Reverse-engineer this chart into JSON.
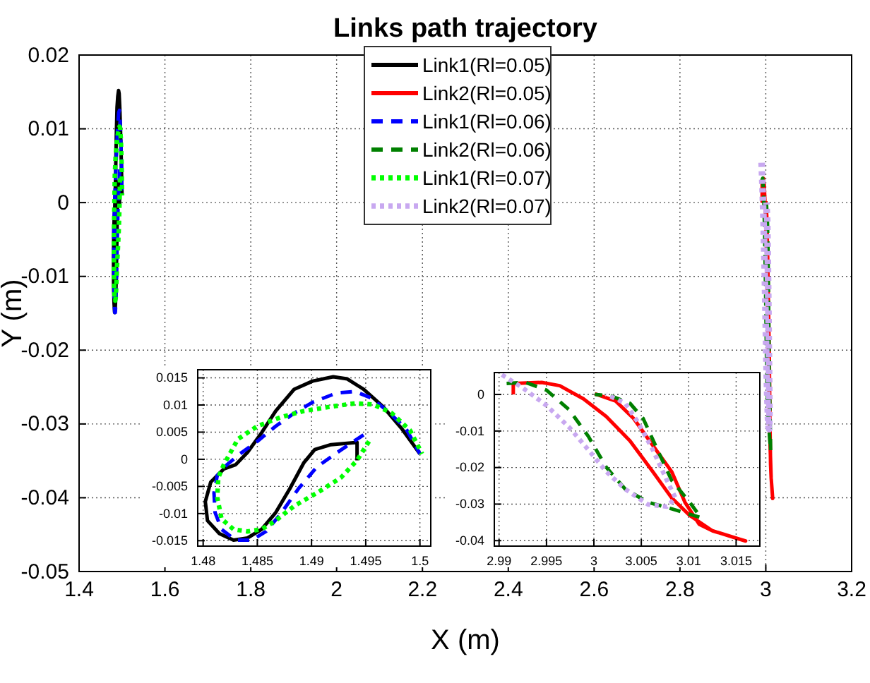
{
  "chart_data": [
    {
      "type": "line",
      "title": "Links path trajectory",
      "xlabel": "X (m)",
      "ylabel": "Y (m)",
      "xlim": [
        1.4,
        3.2
      ],
      "ylim": [
        -0.05,
        0.02
      ],
      "xticks": [
        1.4,
        1.6,
        1.8,
        2,
        2.2,
        2.4,
        2.6,
        2.8,
        3,
        3.2
      ],
      "yticks": [
        -0.05,
        -0.04,
        -0.03,
        -0.02,
        -0.01,
        0,
        0.01,
        0.02
      ],
      "grid": true,
      "legend": "top",
      "series": [
        {
          "name": "Link1(Rl=0.05)",
          "color": "#000000",
          "line_style": "solid",
          "x": [
            1.4942,
            1.4942,
            1.4918,
            1.4903,
            1.4893,
            1.488,
            1.4867,
            1.4854,
            1.4841,
            1.4828,
            1.4815,
            1.4804,
            1.4802,
            1.4807,
            1.4819,
            1.483,
            1.4841,
            1.4854,
            1.4867,
            1.4884,
            1.4901,
            1.492,
            1.4933,
            1.4948,
            1.4966,
            1.4983,
            1.5
          ],
          "values": [
            -0.0002,
            0.0031,
            0.0027,
            0.0018,
            -0.0006,
            -0.0054,
            -0.0098,
            -0.0129,
            -0.0145,
            -0.0149,
            -0.0137,
            -0.0113,
            -0.0078,
            -0.0042,
            -0.0018,
            -0.001,
            0.0013,
            0.0049,
            0.0089,
            0.0129,
            0.0144,
            0.0152,
            0.0148,
            0.0129,
            0.0097,
            0.0057,
            0.001
          ]
        },
        {
          "name": "Link2(Rl=0.05)",
          "color": "#ff0000",
          "line_style": "solid",
          "x": [
            2.9915,
            2.9915,
            2.9945,
            2.9964,
            2.9989,
            3.0013,
            3.0038,
            3.0062,
            3.0082,
            3.0101,
            3.0125,
            3.016,
            3.0145,
            3.0125,
            3.0111,
            3.0096,
            3.0082,
            3.0062,
            3.0042,
            3.0023,
            3.0001
          ],
          "values": [
            0,
            0.003,
            0.0033,
            0.0024,
            -0.0012,
            -0.006,
            -0.0127,
            -0.0211,
            -0.0283,
            -0.0331,
            -0.0373,
            -0.0401,
            -0.0389,
            -0.0373,
            -0.0355,
            -0.0295,
            -0.0211,
            -0.0139,
            -0.0066,
            -0.0018,
            0.0002
          ]
        },
        {
          "name": "Link1(Rl=0.06)",
          "color": "#0000ff",
          "line_style": "dashed",
          "x": [
            1.4948,
            1.4927,
            1.4905,
            1.4888,
            1.4871,
            1.4858,
            1.4845,
            1.483,
            1.4817,
            1.4811,
            1.481,
            1.4813,
            1.4822,
            1.4834,
            1.485,
            1.4867,
            1.4884,
            1.4901,
            1.4923,
            1.494,
            1.4955,
            1.497,
            1.4987,
            1.5
          ],
          "values": [
            0.0045,
            0.0017,
            -0.0014,
            -0.0054,
            -0.0102,
            -0.0133,
            -0.0149,
            -0.0149,
            -0.0129,
            -0.0098,
            -0.0062,
            -0.003,
            -0.001,
            0.001,
            0.0033,
            0.0061,
            0.0085,
            0.0105,
            0.0122,
            0.0125,
            0.0113,
            0.0089,
            0.0057,
            0.001
          ]
        },
        {
          "name": "Link2(Rl=0.06)",
          "color": "#008000",
          "line_style": "dashed",
          "x": [
            2.9908,
            2.9928,
            2.995,
            2.9974,
            2.9994,
            3.0013,
            3.0033,
            3.0057,
            3.0082,
            3.0113,
            3.0101,
            3.0082,
            3.0067,
            3.0052,
            3.0038,
            3.0018,
            3.0001
          ],
          "values": [
            0.003,
            0.0033,
            0.0012,
            -0.0042,
            -0.0114,
            -0.0199,
            -0.0259,
            -0.0295,
            -0.0313,
            -0.0337,
            -0.0295,
            -0.0235,
            -0.0151,
            -0.0066,
            -0.0024,
            -0.0004,
            0
          ]
        },
        {
          "name": "Link1(Rl=0.07)",
          "color": "#00ff00",
          "line_style": "dotted",
          "x": [
            1.4953,
            1.4942,
            1.4927,
            1.4905,
            1.4884,
            1.4867,
            1.4854,
            1.4841,
            1.4828,
            1.4817,
            1.4813,
            1.4814,
            1.4819,
            1.4832,
            1.485,
            1.4871,
            1.4893,
            1.4918,
            1.494,
            1.4957,
            1.4974,
            1.4991,
            1.5002
          ],
          "values": [
            0.0033,
            -0.0002,
            -0.0034,
            -0.0062,
            -0.0086,
            -0.0113,
            -0.0129,
            -0.0133,
            -0.0129,
            -0.011,
            -0.007,
            -0.0034,
            -0.001,
            0.0037,
            0.0061,
            0.0077,
            0.0089,
            0.0097,
            0.0103,
            0.0101,
            0.0085,
            0.0053,
            0.001
          ]
        },
        {
          "name": "Link2(Rl=0.07)",
          "color": "#c8a8f0",
          "line_style": "dotted",
          "x": [
            2.9903,
            2.9925,
            2.995,
            2.9974,
            2.9994,
            3.0013,
            3.0033,
            3.0057,
            3.0077,
            3.0086,
            3.0077,
            3.0062,
            3.0047,
            3.0033,
            3.0013
          ],
          "values": [
            0.0054,
            0.0018,
            -0.003,
            -0.009,
            -0.0151,
            -0.0211,
            -0.0259,
            -0.0301,
            -0.0307,
            -0.0283,
            -0.0235,
            -0.0151,
            -0.0078,
            -0.0024,
            0
          ]
        }
      ]
    },
    {
      "type": "line",
      "xlim": [
        1.4795,
        1.501
      ],
      "ylim": [
        -0.016,
        0.0165
      ],
      "xticks": [
        1.48,
        1.485,
        1.49,
        1.495,
        1.5
      ],
      "yticks": [
        -0.015,
        -0.01,
        -0.005,
        0,
        0.005,
        0.01,
        0.015
      ],
      "grid": true,
      "series": [
        {
          "color": "#000000",
          "line_style": "solid",
          "x": [
            1.4942,
            1.4942,
            1.4918,
            1.4903,
            1.4893,
            1.488,
            1.4867,
            1.4854,
            1.4841,
            1.4828,
            1.4815,
            1.4804,
            1.4802,
            1.4807,
            1.4819,
            1.483,
            1.4841,
            1.4854,
            1.4867,
            1.4884,
            1.4901,
            1.492,
            1.4933,
            1.4948,
            1.4966,
            1.4983,
            1.5
          ],
          "values": [
            -0.0002,
            0.0031,
            0.0027,
            0.0018,
            -0.0006,
            -0.0054,
            -0.0098,
            -0.0129,
            -0.0145,
            -0.0149,
            -0.0137,
            -0.0113,
            -0.0078,
            -0.0042,
            -0.0018,
            -0.001,
            0.0013,
            0.0049,
            0.0089,
            0.0129,
            0.0144,
            0.0152,
            0.0148,
            0.0129,
            0.0097,
            0.0057,
            0.001
          ]
        },
        {
          "color": "#0000ff",
          "line_style": "dashed",
          "x": [
            1.4948,
            1.4927,
            1.4905,
            1.4888,
            1.4871,
            1.4858,
            1.4845,
            1.483,
            1.4817,
            1.4811,
            1.481,
            1.4813,
            1.4822,
            1.4834,
            1.485,
            1.4867,
            1.4884,
            1.4901,
            1.4923,
            1.494,
            1.4955,
            1.497,
            1.4987,
            1.5
          ],
          "values": [
            0.0045,
            0.0017,
            -0.0014,
            -0.0054,
            -0.0102,
            -0.0133,
            -0.0149,
            -0.0149,
            -0.0129,
            -0.0098,
            -0.0062,
            -0.003,
            -0.001,
            0.001,
            0.0033,
            0.0061,
            0.0085,
            0.0105,
            0.0122,
            0.0125,
            0.0113,
            0.0089,
            0.0057,
            0.001
          ]
        },
        {
          "color": "#00ff00",
          "line_style": "dotted",
          "x": [
            1.4953,
            1.4942,
            1.4927,
            1.4905,
            1.4884,
            1.4867,
            1.4854,
            1.4841,
            1.4828,
            1.4817,
            1.4813,
            1.4814,
            1.4819,
            1.4832,
            1.485,
            1.4871,
            1.4893,
            1.4918,
            1.494,
            1.4957,
            1.4974,
            1.4991,
            1.5002
          ],
          "values": [
            0.0033,
            -0.0002,
            -0.0034,
            -0.0062,
            -0.0086,
            -0.0113,
            -0.0129,
            -0.0133,
            -0.0129,
            -0.011,
            -0.007,
            -0.0034,
            -0.001,
            0.0037,
            0.0061,
            0.0077,
            0.0089,
            0.0097,
            0.0103,
            0.0101,
            0.0085,
            0.0053,
            0.001
          ]
        }
      ]
    },
    {
      "type": "line",
      "xlim": [
        2.9895,
        3.0175
      ],
      "ylim": [
        -0.0415,
        0.006
      ],
      "xticks": [
        2.99,
        2.995,
        3,
        3.005,
        3.01,
        3.015
      ],
      "yticks": [
        -0.04,
        -0.03,
        -0.02,
        -0.01,
        0
      ],
      "grid": true,
      "series": [
        {
          "color": "#ff0000",
          "line_style": "solid",
          "x": [
            2.9915,
            2.9915,
            2.9945,
            2.9964,
            2.9989,
            3.0013,
            3.0038,
            3.0062,
            3.0082,
            3.0101,
            3.0125,
            3.016,
            3.0145,
            3.0125,
            3.0111,
            3.0096,
            3.0082,
            3.0062,
            3.0042,
            3.0023,
            3.0001
          ],
          "values": [
            0,
            0.003,
            0.0033,
            0.0024,
            -0.0012,
            -0.006,
            -0.0127,
            -0.0211,
            -0.0283,
            -0.0331,
            -0.0373,
            -0.0401,
            -0.0389,
            -0.0373,
            -0.0355,
            -0.0295,
            -0.0211,
            -0.0139,
            -0.0066,
            -0.0018,
            0.0002
          ]
        },
        {
          "color": "#008000",
          "line_style": "dashed",
          "x": [
            2.9908,
            2.9928,
            2.995,
            2.9974,
            2.9994,
            3.0013,
            3.0033,
            3.0057,
            3.0082,
            3.0113,
            3.0101,
            3.0082,
            3.0067,
            3.0052,
            3.0038,
            3.0018,
            3.0001
          ],
          "values": [
            0.003,
            0.0033,
            0.0012,
            -0.0042,
            -0.0114,
            -0.0199,
            -0.0259,
            -0.0295,
            -0.0313,
            -0.0337,
            -0.0295,
            -0.0235,
            -0.0151,
            -0.0066,
            -0.0024,
            -0.0004,
            0
          ]
        },
        {
          "color": "#c8a8f0",
          "line_style": "dotted",
          "x": [
            2.9903,
            2.9925,
            2.995,
            2.9974,
            2.9994,
            3.0013,
            3.0033,
            3.0057,
            3.0077,
            3.0086,
            3.0077,
            3.0062,
            3.0047,
            3.0033,
            3.0013
          ],
          "values": [
            0.0054,
            0.0018,
            -0.003,
            -0.009,
            -0.0151,
            -0.0211,
            -0.0259,
            -0.0301,
            -0.0307,
            -0.0283,
            -0.0235,
            -0.0151,
            -0.0078,
            -0.0024,
            0
          ]
        }
      ]
    }
  ]
}
